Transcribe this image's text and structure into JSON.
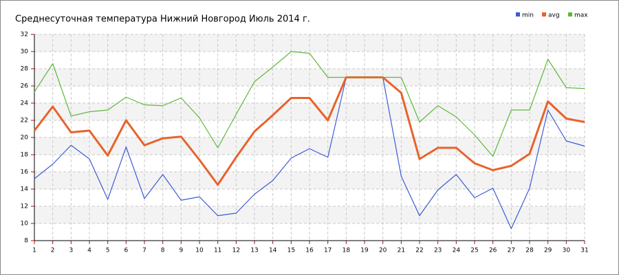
{
  "chart_data": {
    "type": "line",
    "title": "Среднесуточная температура Нижний Новгород  Июль 2014 г.",
    "x": [
      1,
      2,
      3,
      4,
      5,
      6,
      7,
      8,
      9,
      10,
      11,
      12,
      13,
      14,
      15,
      16,
      17,
      18,
      19,
      20,
      21,
      22,
      23,
      24,
      25,
      26,
      27,
      28,
      29,
      30,
      31
    ],
    "xlim": [
      1,
      31
    ],
    "xticks": [
      1,
      2,
      3,
      4,
      5,
      6,
      7,
      8,
      9,
      10,
      11,
      12,
      13,
      14,
      15,
      16,
      17,
      18,
      19,
      20,
      21,
      22,
      23,
      24,
      25,
      26,
      27,
      28,
      29,
      30,
      31
    ],
    "ylim": [
      8,
      32
    ],
    "yticks": [
      8,
      10,
      12,
      14,
      16,
      18,
      20,
      22,
      24,
      26,
      28,
      30,
      32
    ],
    "grid": true,
    "legend": "top-right",
    "series": [
      {
        "name": "min",
        "color": "#3b5bd6",
        "values": [
          15.2,
          16.9,
          19.1,
          17.5,
          12.8,
          18.9,
          12.9,
          15.7,
          12.7,
          13.1,
          10.9,
          11.2,
          13.4,
          15.0,
          17.6,
          18.7,
          17.7,
          27.0,
          27.0,
          27.0,
          15.5,
          10.9,
          13.9,
          15.7,
          13.0,
          14.1,
          9.4,
          14.1,
          23.2,
          19.6,
          19.0
        ]
      },
      {
        "name": "avg",
        "color": "#e8622a",
        "values": [
          20.8,
          23.6,
          20.6,
          20.8,
          17.9,
          22.0,
          19.1,
          19.9,
          20.1,
          17.4,
          14.5,
          17.7,
          20.7,
          22.6,
          24.6,
          24.6,
          22.0,
          27.0,
          27.0,
          27.0,
          25.2,
          17.5,
          18.8,
          18.8,
          17.0,
          16.2,
          16.7,
          18.1,
          24.2,
          22.2,
          21.8
        ]
      },
      {
        "name": "max",
        "color": "#5cb83a",
        "values": [
          25.3,
          28.6,
          22.5,
          23.0,
          23.2,
          24.7,
          23.8,
          23.7,
          24.6,
          22.3,
          18.8,
          22.7,
          26.5,
          28.2,
          30.0,
          29.8,
          27.0,
          27.0,
          27.0,
          27.0,
          27.0,
          21.8,
          23.7,
          22.4,
          20.3,
          17.8,
          23.2,
          23.2,
          29.1,
          25.8,
          25.7
        ]
      }
    ]
  }
}
